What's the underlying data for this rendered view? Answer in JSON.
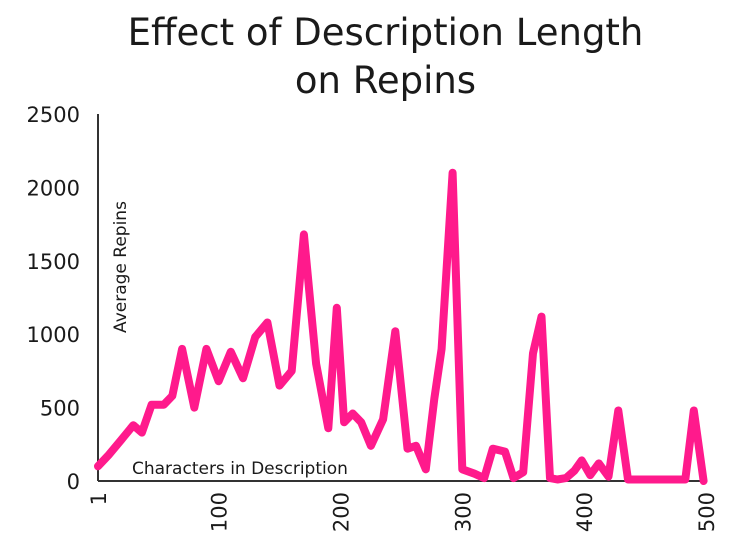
{
  "chart_data": {
    "type": "line",
    "title_lines": [
      "Effect of Description Length",
      "on Repins"
    ],
    "xlabel": "Characters in Description",
    "ylabel": "Average Repins",
    "xlim": [
      1,
      500
    ],
    "ylim": [
      0,
      2500
    ],
    "x_ticks": [
      1,
      100,
      200,
      300,
      400,
      500
    ],
    "y_ticks": [
      0,
      500,
      1000,
      1500,
      2000,
      2500
    ],
    "grid": false,
    "line_color": "#ff1a8c",
    "series": [
      {
        "x": [
          1,
          10,
          20,
          30,
          37,
          45,
          55,
          62,
          70,
          80,
          90,
          100,
          110,
          120,
          130,
          140,
          150,
          160,
          170,
          180,
          190,
          197,
          203,
          210,
          217,
          225,
          235,
          245,
          255,
          262,
          270,
          277,
          283,
          292,
          300,
          310,
          318,
          325,
          335,
          342,
          350,
          358,
          365,
          372,
          378,
          385,
          392,
          398,
          405,
          412,
          420,
          428,
          436,
          444,
          452,
          460,
          468,
          475,
          483,
          490,
          498
        ],
        "y": [
          100,
          180,
          280,
          380,
          330,
          520,
          520,
          580,
          900,
          500,
          900,
          680,
          880,
          700,
          980,
          1080,
          650,
          750,
          1680,
          800,
          360,
          1180,
          400,
          460,
          400,
          240,
          420,
          1020,
          220,
          240,
          80,
          560,
          900,
          2100,
          80,
          50,
          20,
          220,
          200,
          20,
          60,
          870,
          1120,
          20,
          10,
          20,
          70,
          140,
          40,
          120,
          30,
          480,
          10,
          10,
          10,
          10,
          10,
          10,
          10,
          480,
          0
        ]
      }
    ]
  }
}
